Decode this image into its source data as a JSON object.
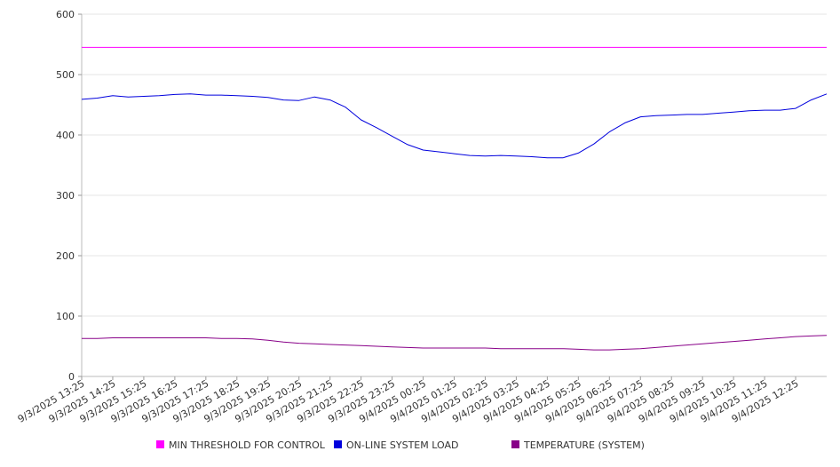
{
  "chart_data": {
    "type": "line",
    "title": "",
    "xlabel": "",
    "ylabel": "",
    "ylim": [
      0,
      600
    ],
    "y_ticks": [
      0,
      100,
      200,
      300,
      400,
      500,
      600
    ],
    "x_tick_labels": [
      "9/3/2025 13:25",
      "9/3/2025 14:25",
      "9/3/2025 15:25",
      "9/3/2025 16:25",
      "9/3/2025 17:25",
      "9/3/2025 18:25",
      "9/3/2025 19:25",
      "9/3/2025 20:25",
      "9/3/2025 21:25",
      "9/3/2025 22:25",
      "9/3/2025 23:25",
      "9/4/2025 00:25",
      "9/4/2025 01:25",
      "9/4/2025 02:25",
      "9/4/2025 03:25",
      "9/4/2025 04:25",
      "9/4/2025 05:25",
      "9/4/2025 06:25",
      "9/4/2025 07:25",
      "9/4/2025 08:25",
      "9/4/2025 09:25",
      "9/4/2025 10:25",
      "9/4/2025 11:25",
      "9/4/2025 12:25"
    ],
    "x": [
      "9/3/2025 13:25",
      "9/3/2025 13:55",
      "9/3/2025 14:25",
      "9/3/2025 14:55",
      "9/3/2025 15:25",
      "9/3/2025 15:55",
      "9/3/2025 16:25",
      "9/3/2025 16:55",
      "9/3/2025 17:25",
      "9/3/2025 17:55",
      "9/3/2025 18:25",
      "9/3/2025 18:55",
      "9/3/2025 19:25",
      "9/3/2025 19:55",
      "9/3/2025 20:25",
      "9/3/2025 20:55",
      "9/3/2025 21:25",
      "9/3/2025 21:55",
      "9/3/2025 22:25",
      "9/3/2025 22:55",
      "9/3/2025 23:25",
      "9/3/2025 23:55",
      "9/4/2025 00:25",
      "9/4/2025 00:55",
      "9/4/2025 01:25",
      "9/4/2025 01:55",
      "9/4/2025 02:25",
      "9/4/2025 02:55",
      "9/4/2025 03:25",
      "9/4/2025 03:55",
      "9/4/2025 04:25",
      "9/4/2025 04:55",
      "9/4/2025 05:25",
      "9/4/2025 05:55",
      "9/4/2025 06:25",
      "9/4/2025 06:55",
      "9/4/2025 07:25",
      "9/4/2025 07:55",
      "9/4/2025 08:25",
      "9/4/2025 08:55",
      "9/4/2025 09:25",
      "9/4/2025 09:55",
      "9/4/2025 10:25",
      "9/4/2025 10:55",
      "9/4/2025 11:25",
      "9/4/2025 11:55",
      "9/4/2025 12:25",
      "9/4/2025 12:55",
      "9/4/2025 13:25"
    ],
    "series": [
      {
        "name": "MIN THRESHOLD FOR CONTROL",
        "color": "#ff00ff",
        "values": [
          545,
          545,
          545,
          545,
          545,
          545,
          545,
          545,
          545,
          545,
          545,
          545,
          545,
          545,
          545,
          545,
          545,
          545,
          545,
          545,
          545,
          545,
          545,
          545,
          545,
          545,
          545,
          545,
          545,
          545,
          545,
          545,
          545,
          545,
          545,
          545,
          545,
          545,
          545,
          545,
          545,
          545,
          545,
          545,
          545,
          545,
          545,
          545,
          545
        ]
      },
      {
        "name": "ON-LINE SYSTEM LOAD",
        "color": "#0000dd",
        "values": [
          459,
          461,
          465,
          463,
          464,
          465,
          467,
          468,
          466,
          466,
          465,
          464,
          462,
          458,
          457,
          463,
          458,
          446,
          425,
          412,
          398,
          384,
          375,
          372,
          369,
          366,
          365,
          366,
          365,
          364,
          362,
          362,
          370,
          385,
          405,
          420,
          430,
          432,
          433,
          434,
          434,
          436,
          438,
          440,
          441,
          441,
          444,
          458,
          468
        ]
      },
      {
        "name": "TEMPERATURE (SYSTEM)",
        "color": "#880088",
        "values": [
          63,
          63,
          64,
          64,
          64,
          64,
          64,
          64,
          64,
          63,
          63,
          62,
          60,
          57,
          55,
          54,
          53,
          52,
          51,
          50,
          49,
          48,
          47,
          47,
          47,
          47,
          47,
          46,
          46,
          46,
          46,
          46,
          45,
          44,
          44,
          45,
          46,
          48,
          50,
          52,
          54,
          56,
          58,
          60,
          62,
          64,
          66,
          67,
          68
        ]
      }
    ],
    "legend_position": "bottom",
    "grid": "horizontal"
  }
}
